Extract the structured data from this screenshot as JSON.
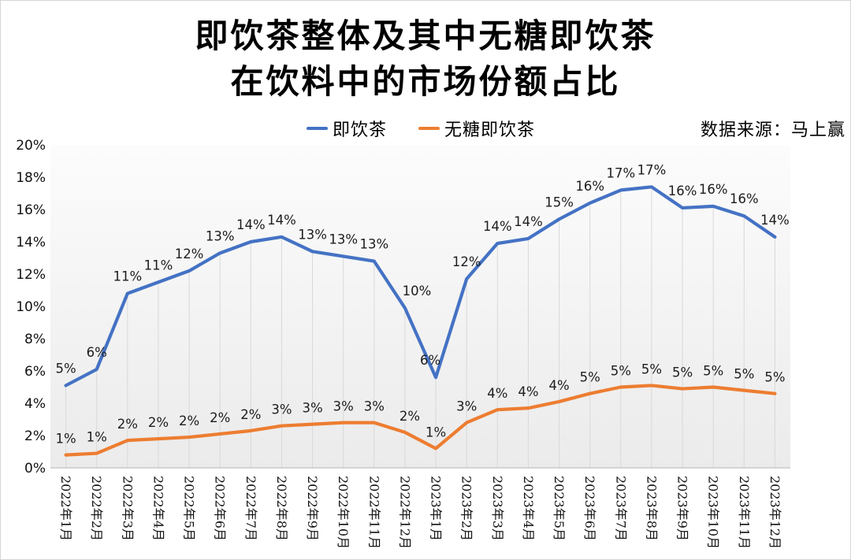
{
  "title": {
    "line1": "即饮茶整体及其中无糖即饮茶",
    "line2": "在饮料中的市场份额占比"
  },
  "source": "数据来源：马上赢",
  "legend": [
    {
      "label": "即饮茶",
      "color": "#4472C4"
    },
    {
      "label": "无糖即饮茶",
      "color": "#ED7D31"
    }
  ],
  "colors": {
    "rtd_tea_line": "#4472C4",
    "sugar_free_line": "#ED7D31",
    "drop_lines": "#D9D9D9",
    "axis_line": "#BFBFBF",
    "plot_bg_top": "#FCFCFC",
    "plot_bg_bottom": "#EBEBEB",
    "label_text": "#1C1C1C"
  },
  "chart_data": {
    "type": "line",
    "title": "即饮茶整体及其中无糖即饮茶在饮料中的市场份额占比",
    "xlabel": "",
    "ylabel": "",
    "ylim": [
      0,
      20
    ],
    "y_ticks": [
      "0%",
      "2%",
      "4%",
      "6%",
      "8%",
      "10%",
      "12%",
      "14%",
      "16%",
      "18%",
      "20%"
    ],
    "grid": "vertical drop-lines from 即饮茶 series to x-axis",
    "legend_position": "top-center",
    "categories": [
      "2022年1月",
      "2022年2月",
      "2022年3月",
      "2022年4月",
      "2022年5月",
      "2022年6月",
      "2022年7月",
      "2022年8月",
      "2022年9月",
      "2022年10月",
      "2022年11月",
      "2022年12月",
      "2023年1月",
      "2023年2月",
      "2023年3月",
      "2023年4月",
      "2023年5月",
      "2023年6月",
      "2023年7月",
      "2023年8月",
      "2023年9月",
      "2023年10月",
      "2023年11月",
      "2023年12月"
    ],
    "series": [
      {
        "name": "即饮茶",
        "color": "#4472C4",
        "values": [
          5,
          6,
          11,
          11,
          12,
          13,
          14,
          14,
          13,
          13,
          13,
          10,
          6,
          12,
          14,
          14,
          15,
          16,
          17,
          17,
          16,
          16,
          16,
          14
        ],
        "labels": [
          "5%",
          "6%",
          "11%",
          "11%",
          "12%",
          "13%",
          "14%",
          "14%",
          "13%",
          "13%",
          "13%",
          "10%",
          "6%",
          "12%",
          "14%",
          "14%",
          "15%",
          "16%",
          "17%",
          "17%",
          "16%",
          "16%",
          "16%",
          "14%"
        ],
        "values_est": [
          5.1,
          6.1,
          10.8,
          11.5,
          12.2,
          13.3,
          14.0,
          14.3,
          13.4,
          13.1,
          12.8,
          9.9,
          5.6,
          11.7,
          13.9,
          14.2,
          15.4,
          16.4,
          17.2,
          17.4,
          16.1,
          16.2,
          15.6,
          14.3
        ]
      },
      {
        "name": "无糖即饮茶",
        "color": "#ED7D31",
        "values": [
          1,
          1,
          2,
          2,
          2,
          2,
          2,
          3,
          3,
          3,
          3,
          2,
          1,
          3,
          4,
          4,
          4,
          5,
          5,
          5,
          5,
          5,
          5,
          5
        ],
        "labels": [
          "1%",
          "1%",
          "2%",
          "2%",
          "2%",
          "2%",
          "2%",
          "3%",
          "3%",
          "3%",
          "3%",
          "2%",
          "1%",
          "3%",
          "4%",
          "4%",
          "4%",
          "5%",
          "5%",
          "5%",
          "5%",
          "5%",
          "5%",
          "5%"
        ],
        "values_est": [
          0.8,
          0.9,
          1.7,
          1.8,
          1.9,
          2.1,
          2.3,
          2.6,
          2.7,
          2.8,
          2.8,
          2.2,
          1.2,
          2.8,
          3.6,
          3.7,
          4.1,
          4.6,
          5.0,
          5.1,
          4.9,
          5.0,
          4.8,
          4.6
        ]
      }
    ]
  }
}
